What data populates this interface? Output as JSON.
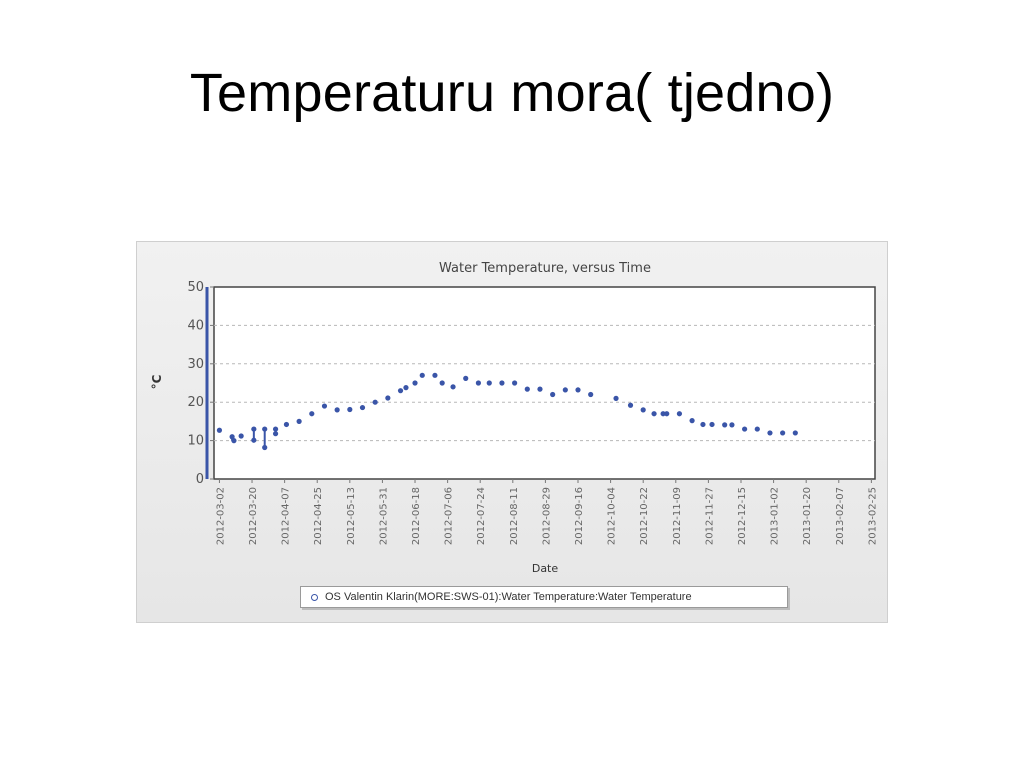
{
  "slide": {
    "title": "Temperaturu mora( tjedno)"
  },
  "colors": {
    "series": "#3a55a8",
    "axis_bar": "#3a55a8",
    "panel_bg": "#ececec"
  },
  "chart_data": {
    "type": "scatter",
    "title": "Water Temperature, versus Time",
    "xlabel": "Date",
    "ylabel": "°C",
    "ylim": [
      0,
      50
    ],
    "yticks": [
      0,
      10,
      20,
      30,
      40,
      50
    ],
    "xlim": [
      "2012-02-28",
      "2013-02-27"
    ],
    "xticks": [
      "2012-03-02",
      "2012-03-20",
      "2012-04-07",
      "2012-04-25",
      "2012-05-13",
      "2012-05-31",
      "2012-06-18",
      "2012-07-06",
      "2012-07-24",
      "2012-08-11",
      "2012-08-29",
      "2012-09-16",
      "2012-10-04",
      "2012-10-22",
      "2012-11-09",
      "2012-11-27",
      "2012-12-15",
      "2013-01-02",
      "2013-01-20",
      "2013-02-07",
      "2013-02-25"
    ],
    "grid": true,
    "legend_position": "bottom",
    "series": [
      {
        "name": "OS Valentin Klarin(MORE:SWS-01):Water Temperature:Water Temperature",
        "marker": "dot",
        "points": [
          {
            "x": "2012-03-02",
            "y": 12.7
          },
          {
            "x": "2012-03-09",
            "y": 11.0
          },
          {
            "x": "2012-03-10",
            "y": 10.0
          },
          {
            "x": "2012-03-14",
            "y": 11.2
          },
          {
            "x": "2012-03-21",
            "y": 10.1
          },
          {
            "x": "2012-03-21",
            "y": 13.0
          },
          {
            "x": "2012-03-27",
            "y": 8.2
          },
          {
            "x": "2012-03-27",
            "y": 13.0
          },
          {
            "x": "2012-04-02",
            "y": 11.8
          },
          {
            "x": "2012-04-02",
            "y": 13.0
          },
          {
            "x": "2012-04-08",
            "y": 14.2
          },
          {
            "x": "2012-04-15",
            "y": 15.0
          },
          {
            "x": "2012-04-22",
            "y": 17.0
          },
          {
            "x": "2012-04-29",
            "y": 19.0
          },
          {
            "x": "2012-05-06",
            "y": 18.0
          },
          {
            "x": "2012-05-13",
            "y": 18.1
          },
          {
            "x": "2012-05-20",
            "y": 18.6
          },
          {
            "x": "2012-05-27",
            "y": 20.0
          },
          {
            "x": "2012-06-03",
            "y": 21.1
          },
          {
            "x": "2012-06-10",
            "y": 23.0
          },
          {
            "x": "2012-06-13",
            "y": 23.8
          },
          {
            "x": "2012-06-18",
            "y": 25.0
          },
          {
            "x": "2012-06-22",
            "y": 27.0
          },
          {
            "x": "2012-06-29",
            "y": 27.0
          },
          {
            "x": "2012-07-03",
            "y": 25.0
          },
          {
            "x": "2012-07-09",
            "y": 24.0
          },
          {
            "x": "2012-07-16",
            "y": 26.2
          },
          {
            "x": "2012-07-23",
            "y": 25.0
          },
          {
            "x": "2012-07-29",
            "y": 25.0
          },
          {
            "x": "2012-08-05",
            "y": 25.0
          },
          {
            "x": "2012-08-12",
            "y": 25.0
          },
          {
            "x": "2012-08-19",
            "y": 23.4
          },
          {
            "x": "2012-08-26",
            "y": 23.4
          },
          {
            "x": "2012-09-02",
            "y": 22.0
          },
          {
            "x": "2012-09-09",
            "y": 23.2
          },
          {
            "x": "2012-09-16",
            "y": 23.2
          },
          {
            "x": "2012-09-23",
            "y": 22.0
          },
          {
            "x": "2012-10-07",
            "y": 21.0
          },
          {
            "x": "2012-10-15",
            "y": 19.2
          },
          {
            "x": "2012-10-22",
            "y": 18.0
          },
          {
            "x": "2012-10-28",
            "y": 17.0
          },
          {
            "x": "2012-11-02",
            "y": 17.0
          },
          {
            "x": "2012-11-04",
            "y": 17.0
          },
          {
            "x": "2012-11-11",
            "y": 17.0
          },
          {
            "x": "2012-11-18",
            "y": 15.2
          },
          {
            "x": "2012-11-24",
            "y": 14.2
          },
          {
            "x": "2012-11-29",
            "y": 14.2
          },
          {
            "x": "2012-12-06",
            "y": 14.1
          },
          {
            "x": "2012-12-10",
            "y": 14.1
          },
          {
            "x": "2012-12-17",
            "y": 13.0
          },
          {
            "x": "2012-12-24",
            "y": 13.0
          },
          {
            "x": "2012-12-31",
            "y": 12.0
          },
          {
            "x": "2013-01-07",
            "y": 12.0
          },
          {
            "x": "2013-01-14",
            "y": 12.0
          }
        ],
        "vertical_segments": [
          {
            "x": "2012-03-21",
            "y1": 10.1,
            "y2": 13.0
          },
          {
            "x": "2012-03-27",
            "y1": 8.2,
            "y2": 13.0
          },
          {
            "x": "2012-04-02",
            "y1": 11.8,
            "y2": 13.0
          },
          {
            "x": "2012-03-09",
            "y1": 10.0,
            "y2": 11.0
          }
        ]
      }
    ]
  }
}
